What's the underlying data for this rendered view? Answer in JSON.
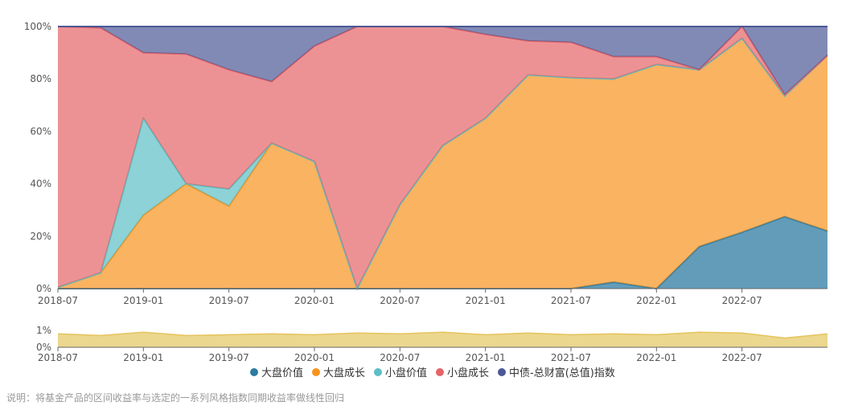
{
  "colors": {
    "large_value": "#2d7ba1",
    "large_growth": "#f7931e",
    "small_value": "#5bbfc4",
    "small_growth": "#e66467",
    "bond_index": "#4c5895",
    "r2_fill": "#e8d07a",
    "r2_line": "#e6c35c",
    "axis": "#666666",
    "tick_text": "#555555",
    "note_text": "#999999"
  },
  "chart_data": {
    "type": "area",
    "stacked": true,
    "x": [
      "2018-07",
      "2018-10",
      "2019-01",
      "2019-04",
      "2019-07",
      "2019-10",
      "2020-01",
      "2020-04",
      "2020-07",
      "2020-10",
      "2021-01",
      "2021-04",
      "2021-07",
      "2021-10",
      "2022-01",
      "2022-04",
      "2022-07",
      "2022-10",
      "2022-12"
    ],
    "x_tick_labels": [
      "2018-07",
      "2019-01",
      "2019-07",
      "2020-01",
      "2020-07",
      "2021-01",
      "2021-07",
      "2022-01",
      "2022-07"
    ],
    "y_tick_labels": [
      "0%",
      "20%",
      "40%",
      "60%",
      "80%",
      "100%"
    ],
    "ylim": [
      0,
      100
    ],
    "legend_position": "bottom-center",
    "series": [
      {
        "name": "大盘价值",
        "values": [
          0,
          0,
          0,
          0,
          0,
          0,
          0,
          0,
          0,
          0,
          0,
          0,
          0,
          2.5,
          0,
          16,
          21.5,
          27.5,
          22
        ]
      },
      {
        "name": "大盘成长",
        "values": [
          0.5,
          6,
          28,
          40,
          31.5,
          55.5,
          48.5,
          0,
          32,
          54.5,
          65,
          81.5,
          80.5,
          77.5,
          85.5,
          67.5,
          74,
          46,
          67
        ]
      },
      {
        "name": "小盘价值",
        "values": [
          0,
          0,
          37,
          0,
          6.5,
          0,
          0,
          0,
          0,
          0,
          0,
          0,
          0,
          0,
          0,
          0,
          0,
          0,
          0
        ]
      },
      {
        "name": "小盘成长",
        "values": [
          99.5,
          93.5,
          25,
          49.5,
          45.5,
          23.5,
          44,
          100,
          68,
          45.5,
          32,
          13,
          13.5,
          8.5,
          3,
          0,
          4.5,
          0.5,
          0
        ]
      },
      {
        "name": "中债-总财富(总值)指数",
        "values": [
          0,
          0.5,
          10,
          10.5,
          16.5,
          21,
          7.5,
          0,
          0,
          0,
          3,
          5.5,
          6,
          11.5,
          11.5,
          16.5,
          0,
          26,
          11
        ]
      }
    ],
    "r_squared": {
      "values": [
        0.8,
        0.7,
        0.9,
        0.7,
        0.75,
        0.8,
        0.75,
        0.85,
        0.8,
        0.9,
        0.75,
        0.85,
        0.75,
        0.8,
        0.75,
        0.9,
        0.85,
        0.55,
        0.8
      ],
      "y_tick_labels": [
        "0%",
        "1%"
      ],
      "ylim": [
        0,
        1.2
      ]
    }
  },
  "legend": {
    "items": [
      {
        "label": "大盘价值"
      },
      {
        "label": "大盘成长"
      },
      {
        "label": "小盘价值"
      },
      {
        "label": "小盘成长"
      },
      {
        "label": "中债-总财富(总值)指数"
      }
    ]
  },
  "note": "说明：将基金产品的区间收益率与选定的一系列风格指数同期收益率做线性回归"
}
